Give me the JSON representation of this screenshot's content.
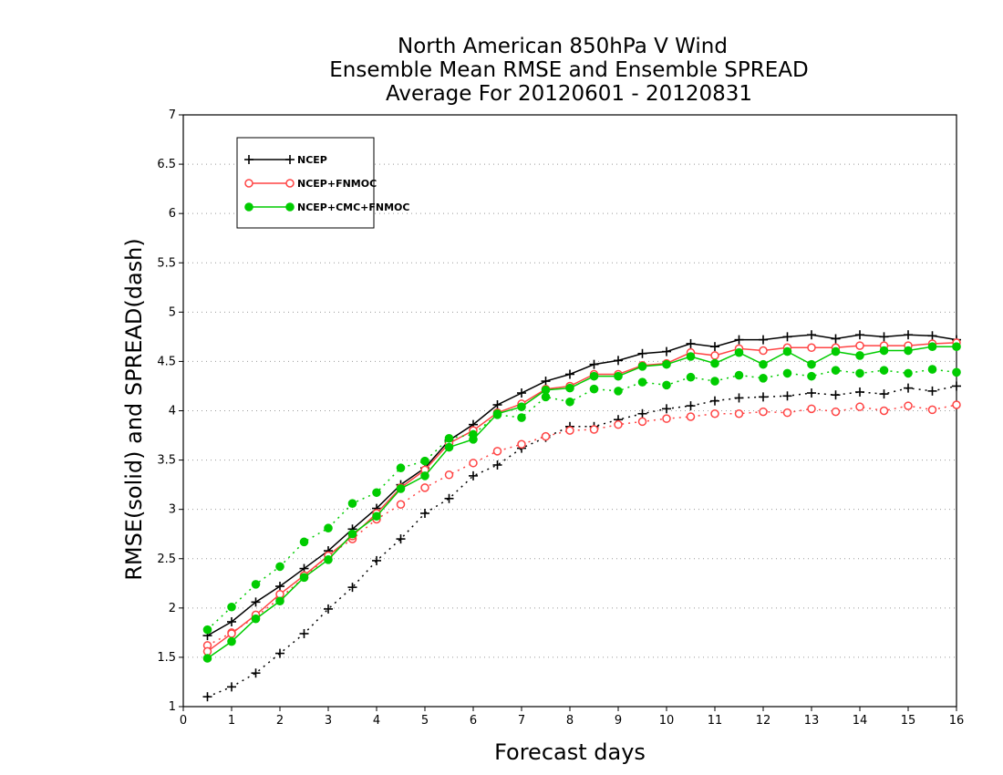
{
  "chart_data": {
    "type": "line",
    "title": [
      "North American 850hPa V Wind",
      "Ensemble Mean RMSE and Ensemble SPREAD",
      "Average For 20120601 - 20120831"
    ],
    "xlabel": "Forecast days",
    "ylabel": "RMSE(solid) and SPREAD(dash)",
    "xlim": [
      0,
      16
    ],
    "ylim": [
      1,
      7
    ],
    "xticks": [
      0,
      1,
      2,
      3,
      4,
      5,
      6,
      7,
      8,
      9,
      10,
      11,
      12,
      13,
      14,
      15,
      16
    ],
    "yticks": [
      1,
      1.5,
      2,
      2.5,
      3,
      3.5,
      4,
      4.5,
      5,
      5.5,
      6,
      6.5,
      7
    ],
    "grid": "horizontal dotted",
    "legend_position": "top-left",
    "x": [
      0.5,
      1,
      1.5,
      2,
      2.5,
      3,
      3.5,
      4,
      4.5,
      5,
      5.5,
      6,
      6.5,
      7,
      7.5,
      8,
      8.5,
      9,
      9.5,
      10,
      10.5,
      11,
      11.5,
      12,
      12.5,
      13,
      13.5,
      14,
      14.5,
      15,
      15.5,
      16
    ],
    "series": [
      {
        "name": "NCEP",
        "color": "#000000",
        "marker": "plus",
        "rmse": [
          1.72,
          1.86,
          2.06,
          2.22,
          2.4,
          2.58,
          2.8,
          3.01,
          3.25,
          3.42,
          3.7,
          3.86,
          4.06,
          4.18,
          4.3,
          4.37,
          4.47,
          4.51,
          4.58,
          4.6,
          4.68,
          4.65,
          4.72,
          4.72,
          4.75,
          4.77,
          4.73,
          4.77,
          4.75,
          4.77,
          4.76,
          4.72
        ],
        "spread": [
          1.1,
          1.2,
          1.34,
          1.54,
          1.74,
          1.99,
          2.21,
          2.48,
          2.7,
          2.96,
          3.11,
          3.34,
          3.45,
          3.62,
          3.73,
          3.84,
          3.84,
          3.91,
          3.97,
          4.02,
          4.05,
          4.1,
          4.13,
          4.14,
          4.15,
          4.18,
          4.16,
          4.19,
          4.17,
          4.23,
          4.2,
          4.25
        ]
      },
      {
        "name": "NCEP+FNMOC",
        "color": "#ff4444",
        "marker": "open-circle",
        "rmse": [
          1.56,
          1.74,
          1.93,
          2.14,
          2.33,
          2.53,
          2.73,
          2.96,
          3.22,
          3.4,
          3.67,
          3.8,
          3.98,
          4.07,
          4.22,
          4.25,
          4.37,
          4.37,
          4.46,
          4.48,
          4.59,
          4.56,
          4.63,
          4.61,
          4.64,
          4.64,
          4.64,
          4.66,
          4.66,
          4.66,
          4.68,
          4.69
        ],
        "spread": [
          1.62,
          1.75,
          1.91,
          2.1,
          2.31,
          2.53,
          2.7,
          2.9,
          3.05,
          3.22,
          3.35,
          3.47,
          3.59,
          3.66,
          3.74,
          3.8,
          3.81,
          3.86,
          3.89,
          3.92,
          3.94,
          3.97,
          3.97,
          3.99,
          3.98,
          4.02,
          3.99,
          4.04,
          4.0,
          4.05,
          4.01,
          4.06
        ]
      },
      {
        "name": "NCEP+CMC+FNMOC",
        "color": "#00cc00",
        "marker": "filled-circle",
        "rmse": [
          1.49,
          1.66,
          1.89,
          2.07,
          2.31,
          2.49,
          2.75,
          2.93,
          3.21,
          3.34,
          3.63,
          3.71,
          3.97,
          4.04,
          4.21,
          4.23,
          4.35,
          4.35,
          4.45,
          4.47,
          4.55,
          4.48,
          4.59,
          4.47,
          4.6,
          4.47,
          4.6,
          4.56,
          4.61,
          4.61,
          4.65,
          4.65
        ],
        "spread": [
          1.78,
          2.01,
          2.24,
          2.42,
          2.67,
          2.81,
          3.06,
          3.17,
          3.42,
          3.49,
          3.72,
          3.76,
          3.96,
          3.93,
          4.14,
          4.09,
          4.22,
          4.2,
          4.29,
          4.26,
          4.34,
          4.3,
          4.36,
          4.33,
          4.38,
          4.35,
          4.41,
          4.38,
          4.41,
          4.38,
          4.42,
          4.39
        ]
      }
    ]
  }
}
